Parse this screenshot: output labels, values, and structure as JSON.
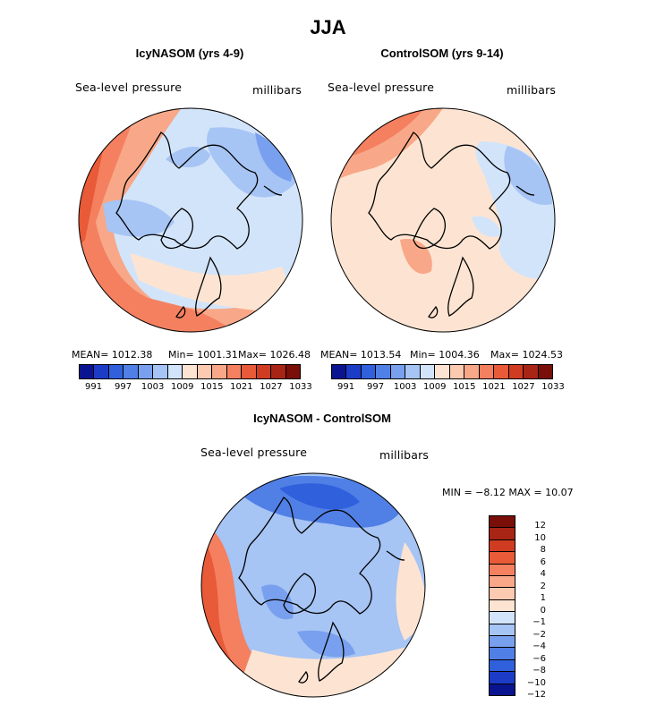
{
  "title": "JJA",
  "chart_data": [
    {
      "type": "heatmap",
      "title": "IcyNASOM (yrs 4-9)",
      "variable": "Sea-level pressure",
      "units": "millibars",
      "stats": {
        "mean_text": "MEAN= 1012.38",
        "min_text": "Min= 1001.31",
        "max_text": "Max= 1026.48",
        "mean": 1012.38,
        "min": 1001.31,
        "max": 1026.48
      },
      "colorbar_ticks": [
        "991",
        "997",
        "1003",
        "1009",
        "1015",
        "1021",
        "1027",
        "1033"
      ],
      "levels": [
        991,
        994,
        997,
        1000,
        1003,
        1006,
        1009,
        1012,
        1015,
        1018,
        1021,
        1024,
        1027,
        1030,
        1033
      ]
    },
    {
      "type": "heatmap",
      "title": "ControlSOM (yrs 9-14)",
      "variable": "Sea-level pressure",
      "units": "millibars",
      "stats": {
        "mean_text": "MEAN= 1013.54",
        "min_text": "Min= 1004.36",
        "max_text": "Max= 1024.53",
        "mean": 1013.54,
        "min": 1004.36,
        "max": 1024.53
      },
      "colorbar_ticks": [
        "991",
        "997",
        "1003",
        "1009",
        "1015",
        "1021",
        "1027",
        "1033"
      ],
      "levels": [
        991,
        994,
        997,
        1000,
        1003,
        1006,
        1009,
        1012,
        1015,
        1018,
        1021,
        1024,
        1027,
        1030,
        1033
      ]
    },
    {
      "type": "heatmap",
      "title": "IcyNASOM - ControlSOM",
      "variable": "Sea-level pressure",
      "units": "millibars",
      "stats": {
        "min_max_text": "MIN =  −8.12 MAX =  10.07",
        "min": -8.12,
        "max": 10.07
      },
      "colorbar_ticks": [
        "12",
        "10",
        "8",
        "6",
        "4",
        "2",
        "1",
        "0",
        "−1",
        "−2",
        "−4",
        "−6",
        "−8",
        "−10",
        "−12"
      ]
    }
  ],
  "colors": {
    "abs_scale": [
      "#0a1490",
      "#1c3cc8",
      "#3060dc",
      "#5080e6",
      "#78a0ee",
      "#a6c4f4",
      "#d2e4fa",
      "#fde4d2",
      "#fbcab0",
      "#f8a888",
      "#f48060",
      "#e85a38",
      "#d03c22",
      "#a82414",
      "#7a0e08"
    ],
    "diff_scale": [
      "#7a0e08",
      "#a82414",
      "#d03c22",
      "#e85a38",
      "#f48060",
      "#f8a888",
      "#fbcab0",
      "#fde4d2",
      "#d2e4fa",
      "#a6c4f4",
      "#78a0ee",
      "#5080e6",
      "#3060dc",
      "#1c3cc8",
      "#0a1490"
    ]
  }
}
